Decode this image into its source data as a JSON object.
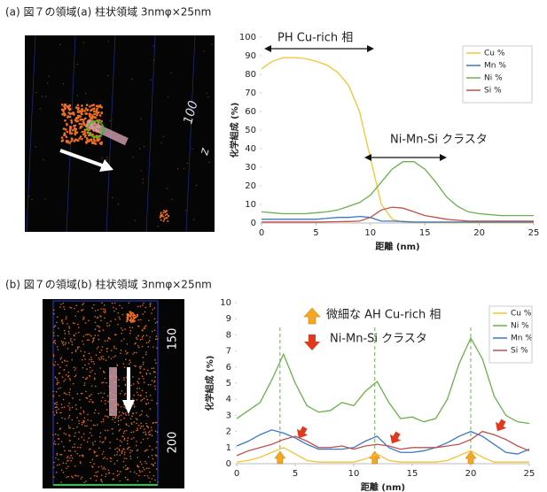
{
  "captions": [
    "(a) 図７の領域(a) 柱状領域 3nmφ×25nm",
    "(b) 図７の領域(b) 柱状領域 3nmφ×25nm"
  ],
  "image_labels": [
    [
      "100",
      "z"
    ],
    [
      "150",
      "200"
    ]
  ],
  "chart_data": [
    {
      "type": "line",
      "x_label": "距離 (nm)",
      "y_label": "化学組成 (%)",
      "x": [
        0,
        1,
        2,
        3,
        4,
        5,
        6,
        7,
        8,
        9,
        10,
        11,
        12,
        13,
        14,
        15,
        16,
        17,
        18,
        19,
        20,
        21,
        22,
        23,
        24,
        25
      ],
      "xlim": [
        0,
        25
      ],
      "xticks": [
        0,
        5,
        10,
        15,
        20,
        25
      ],
      "ylim": [
        0,
        100
      ],
      "yticks": [
        0,
        10,
        20,
        30,
        40,
        50,
        60,
        70,
        80,
        90,
        100
      ],
      "grid": false,
      "legend": "top-right",
      "annotations": [
        "PH Cu-rich 相",
        "Ni-Mn-Si クラスタ"
      ],
      "series": [
        {
          "name": "Cu %",
          "color": "#f5c431",
          "values": [
            83,
            87,
            89,
            89,
            88.5,
            87,
            85,
            81,
            74,
            60,
            35,
            10,
            2,
            0.5,
            0.3,
            0.2,
            0.2,
            0.2,
            0.2,
            0.2,
            0.2,
            0.2,
            0.2,
            0.2,
            0.2,
            0.2
          ]
        },
        {
          "name": "Mn %",
          "color": "#3b78c8",
          "values": [
            2,
            2,
            2,
            2,
            2,
            2,
            2.5,
            3,
            3,
            3.5,
            3,
            1,
            1,
            0.8,
            0.5,
            0.5,
            0.5,
            0.5,
            0.5,
            0.5,
            0.5,
            0.5,
            0.5,
            0.5,
            0.5,
            0.5
          ]
        },
        {
          "name": "Ni %",
          "color": "#6ab04c",
          "values": [
            6,
            5.5,
            5,
            5,
            5,
            5.5,
            6,
            7,
            9,
            11,
            15,
            22,
            29,
            33,
            33,
            29,
            22,
            14,
            9,
            6,
            5,
            4.5,
            4,
            4,
            4,
            4
          ]
        },
        {
          "name": "Si %",
          "color": "#c0504d",
          "values": [
            0.5,
            0.5,
            0.5,
            0.5,
            0.5,
            0.5,
            0.6,
            0.7,
            0.8,
            1,
            3,
            7,
            8.5,
            8,
            6,
            4,
            3,
            2,
            1.5,
            1,
            1,
            1,
            1,
            1,
            1,
            1
          ]
        }
      ]
    },
    {
      "type": "line",
      "x_label": "距離 (nm)",
      "y_label": "化学組成 (%)",
      "x": [
        0,
        1,
        2,
        3,
        4,
        5,
        6,
        7,
        8,
        9,
        10,
        11,
        12,
        13,
        14,
        15,
        16,
        17,
        18,
        19,
        20,
        21,
        22,
        23,
        24,
        25
      ],
      "xlim": [
        0,
        25
      ],
      "xticks": [
        0,
        5,
        10,
        15,
        20,
        25
      ],
      "ylim": [
        0,
        10
      ],
      "yticks": [
        0,
        1,
        2,
        3,
        4,
        5,
        6,
        7,
        8,
        9,
        10
      ],
      "grid": false,
      "legend": "top-right",
      "guide_x": [
        3.7,
        11.8,
        20
      ],
      "annotations": [
        "微細な AH Cu-rich 相",
        "Ni-Mn-Si クラスタ"
      ],
      "series": [
        {
          "name": "Cu %",
          "color": "#f5c431",
          "values": [
            0.1,
            0.2,
            0.4,
            0.7,
            1.0,
            0.6,
            0.2,
            0.1,
            0.1,
            0.1,
            0.1,
            0.3,
            0.6,
            0.2,
            0.1,
            0.1,
            0.1,
            0.1,
            0.2,
            0.5,
            0.8,
            0.4,
            0.1,
            0.1,
            0.1,
            0.1
          ]
        },
        {
          "name": "Ni %",
          "color": "#6ab04c",
          "values": [
            2.8,
            3.3,
            3.8,
            5.2,
            6.8,
            5,
            3.6,
            3.2,
            3.3,
            3.8,
            3.6,
            4.5,
            5.1,
            3.8,
            2.8,
            2.9,
            2.6,
            2.8,
            4,
            6.2,
            7.8,
            6.5,
            4.2,
            3,
            2.6,
            2.5
          ]
        },
        {
          "name": "Mn %",
          "color": "#3b78c8",
          "values": [
            1.1,
            1.4,
            1.8,
            2.1,
            1.9,
            1.6,
            1.2,
            0.9,
            0.9,
            0.9,
            1,
            1.4,
            1.7,
            1,
            0.7,
            0.7,
            0.8,
            1,
            1.3,
            1.7,
            2,
            1.7,
            1.2,
            0.7,
            0.6,
            0.9
          ]
        },
        {
          "name": "Si %",
          "color": "#c0504d",
          "values": [
            0.5,
            0.8,
            1.0,
            1.2,
            1.5,
            1.7,
            1.4,
            1.0,
            1.0,
            1.1,
            0.9,
            1.1,
            1.2,
            1.1,
            0.9,
            1.0,
            1.0,
            1.0,
            1.1,
            1.2,
            1.5,
            2.0,
            1.8,
            1.5,
            1.1,
            0.8
          ]
        }
      ]
    }
  ]
}
